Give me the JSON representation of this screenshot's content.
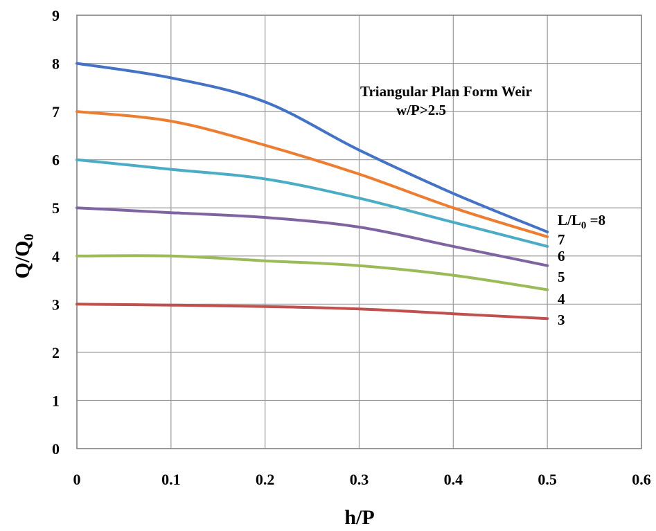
{
  "chart_data": {
    "type": "line",
    "xlabel": "h/P",
    "ylabel": "Q/Q",
    "ylabel_sub": "0",
    "xlim": [
      0,
      0.6
    ],
    "ylim": [
      0,
      9
    ],
    "xticks": [
      "0",
      "0.1",
      "0.2",
      "0.3",
      "0.4",
      "0.5",
      "0.6"
    ],
    "yticks": [
      "0",
      "1",
      "2",
      "3",
      "4",
      "5",
      "6",
      "7",
      "8",
      "9"
    ],
    "grid": true,
    "legend": "none",
    "annotations": [
      "Triangular Plan Form Weir",
      "w/P>2.5"
    ],
    "x": [
      0,
      0.1,
      0.2,
      0.3,
      0.4,
      0.5
    ],
    "series": [
      {
        "name": "8",
        "color": "#4472c4",
        "values": [
          8.0,
          7.7,
          7.2,
          6.2,
          5.3,
          4.5
        ]
      },
      {
        "name": "7",
        "color": "#ed7d31",
        "values": [
          7.0,
          6.8,
          6.3,
          5.7,
          5.0,
          4.4
        ]
      },
      {
        "name": "6",
        "color": "#4bacc6",
        "values": [
          6.0,
          5.8,
          5.6,
          5.2,
          4.7,
          4.2
        ]
      },
      {
        "name": "5",
        "color": "#8064a2",
        "values": [
          5.0,
          4.9,
          4.8,
          4.6,
          4.2,
          3.8
        ]
      },
      {
        "name": "4",
        "color": "#9bbb59",
        "values": [
          4.0,
          4.0,
          3.9,
          3.8,
          3.6,
          3.3
        ]
      },
      {
        "name": "3",
        "color": "#c0504d",
        "values": [
          3.0,
          2.98,
          2.95,
          2.9,
          2.8,
          2.7
        ]
      }
    ],
    "end_labels": [
      {
        "prefix": "L/L",
        "sub": "0",
        "suffix": " =8"
      },
      {
        "prefix": "7",
        "sub": "",
        "suffix": ""
      },
      {
        "prefix": "6",
        "sub": "",
        "suffix": ""
      },
      {
        "prefix": "5",
        "sub": "",
        "suffix": ""
      },
      {
        "prefix": "4",
        "sub": "",
        "suffix": ""
      },
      {
        "prefix": "3",
        "sub": "",
        "suffix": ""
      }
    ]
  }
}
